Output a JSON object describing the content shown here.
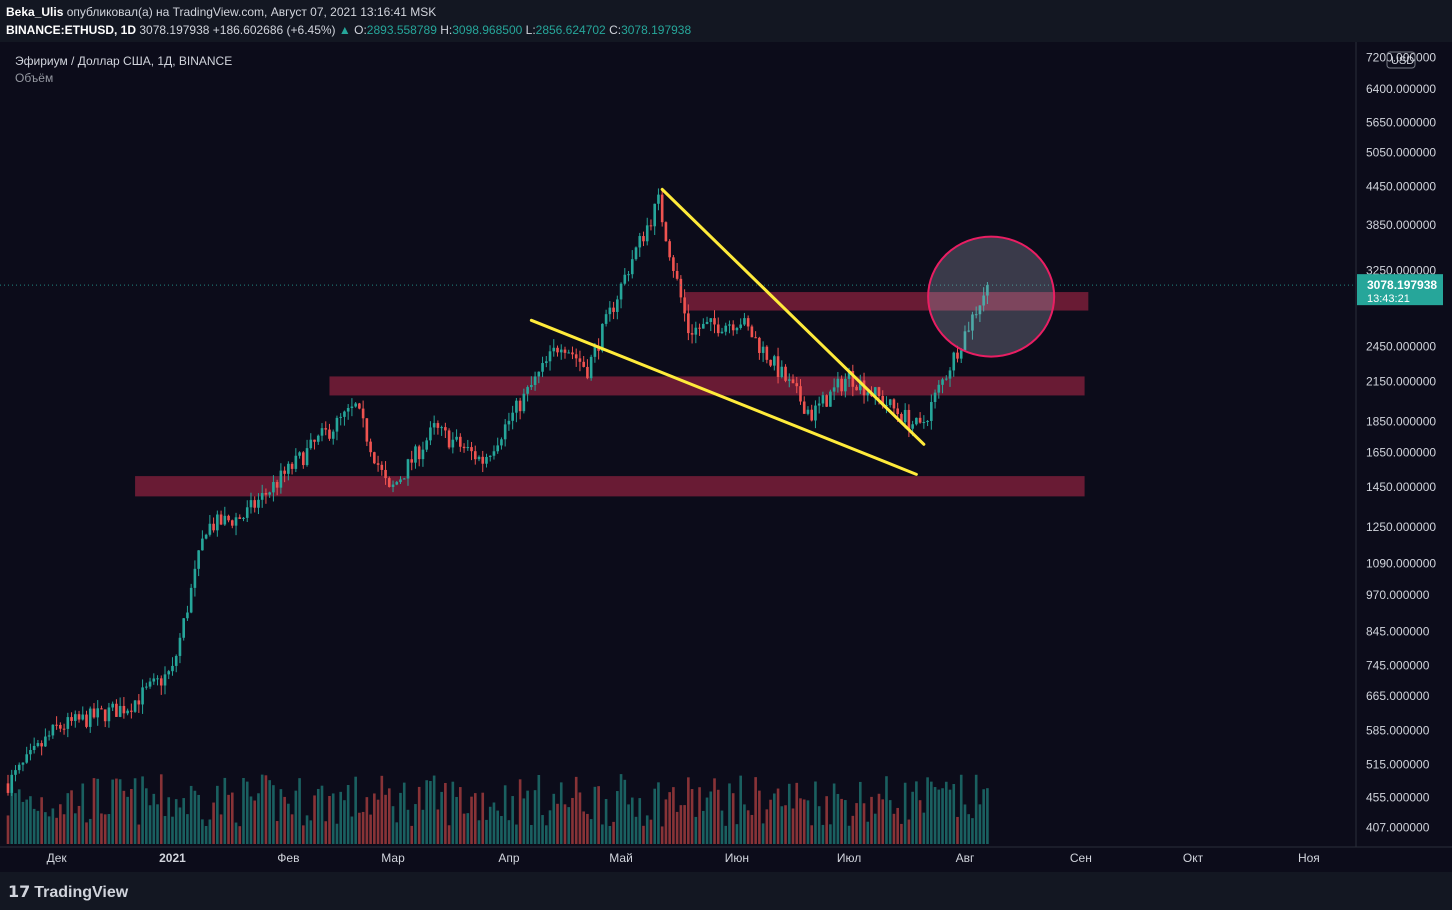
{
  "header": {
    "author": "Beka_Ulis",
    "published_text": "опубликовал(а) на TradingView.com, Август 07, 2021 13:16:41 MSK",
    "symbol": "BINANCE:ETHUSD, 1D",
    "last": "3078.197938",
    "change": "+186.602686 (+6.45%)",
    "o_label": "O:",
    "o": "2893.558789",
    "h_label": "H:",
    "h": "3098.968500",
    "l_label": "L:",
    "l": "2856.624702",
    "c_label": "C:",
    "c": "3078.197938"
  },
  "legend": {
    "title": "Эфириум / Доллар США, 1Д, BINANCE",
    "volume": "Объём"
  },
  "price_axis": {
    "currency": "USD",
    "ticks": [
      "7200.000000",
      "6400.000000",
      "5650.000000",
      "5050.000000",
      "4450.000000",
      "3850.000000",
      "3250.000000",
      "2450.000000",
      "2150.000000",
      "1850.000000",
      "1650.000000",
      "1450.000000",
      "1250.000000",
      "1090.000000",
      "970.000000",
      "845.000000",
      "745.000000",
      "665.000000",
      "585.000000",
      "515.000000",
      "455.000000",
      "407.000000"
    ],
    "current_price_label": "3078.197938",
    "countdown": "13:43:21"
  },
  "time_axis": {
    "labels": [
      "Дек",
      "2021",
      "Фев",
      "Мар",
      "Апр",
      "Май",
      "Июн",
      "Июл",
      "Авг",
      "Сен",
      "Окт",
      "Ноя"
    ]
  },
  "footer": {
    "brand": "TradingView"
  },
  "colors": {
    "up": "#26a69a",
    "down": "#ef5350",
    "zone": "#7a1e3a",
    "trendline": "#ffeb3b",
    "circle": "#e91e63",
    "background": "#0c0c1a"
  },
  "chart_data": {
    "type": "candlestick",
    "scale": "log",
    "title": "Эфириум / Доллар США, 1Д, BINANCE",
    "ylim": [
      380,
      7400
    ],
    "x_range": [
      "2020-11-18",
      "2021-11-12"
    ],
    "last_close": 3078.197938,
    "ohlc_anchor_closes": [
      {
        "date": "2020-11-18",
        "close": 480
      },
      {
        "date": "2020-12-01",
        "close": 590
      },
      {
        "date": "2020-12-20",
        "close": 640
      },
      {
        "date": "2021-01-01",
        "close": 730
      },
      {
        "date": "2021-01-10",
        "close": 1250
      },
      {
        "date": "2021-01-20",
        "close": 1300
      },
      {
        "date": "2021-02-10",
        "close": 1750
      },
      {
        "date": "2021-02-19",
        "close": 1950
      },
      {
        "date": "2021-02-28",
        "close": 1420
      },
      {
        "date": "2021-03-12",
        "close": 1800
      },
      {
        "date": "2021-03-25",
        "close": 1600
      },
      {
        "date": "2021-04-15",
        "close": 2500
      },
      {
        "date": "2021-04-22",
        "close": 2250
      },
      {
        "date": "2021-05-04",
        "close": 3400
      },
      {
        "date": "2021-05-11",
        "close": 4200
      },
      {
        "date": "2021-05-19",
        "close": 2600
      },
      {
        "date": "2021-06-02",
        "close": 2700
      },
      {
        "date": "2021-06-21",
        "close": 1900
      },
      {
        "date": "2021-07-01",
        "close": 2200
      },
      {
        "date": "2021-07-20",
        "close": 1800
      },
      {
        "date": "2021-08-07",
        "close": 3078.197938
      }
    ],
    "zones": [
      {
        "from": 2800,
        "to": 3000,
        "x_start": "2021-05-18",
        "x_end": "2021-09-03"
      },
      {
        "from": 2040,
        "to": 2190,
        "x_start": "2021-02-12",
        "x_end": "2021-09-02"
      },
      {
        "from": 1400,
        "to": 1510,
        "x_start": "2020-12-22",
        "x_end": "2021-09-02"
      }
    ],
    "trendlines": [
      {
        "from": {
          "date": "2021-05-12",
          "price": 4400
        },
        "to": {
          "date": "2021-07-21",
          "price": 1700
        }
      },
      {
        "from": {
          "date": "2021-04-07",
          "price": 2700
        },
        "to": {
          "date": "2021-07-19",
          "price": 1520
        }
      }
    ],
    "circle": {
      "center": {
        "date": "2021-08-08",
        "price": 2950
      }
    }
  }
}
